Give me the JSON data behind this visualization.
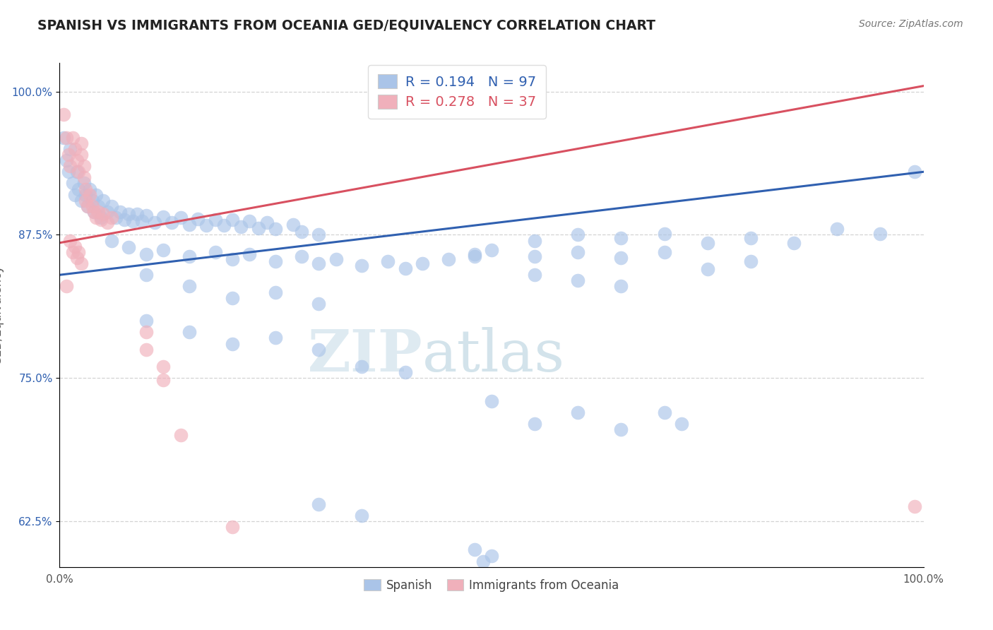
{
  "title": "SPANISH VS IMMIGRANTS FROM OCEANIA GED/EQUIVALENCY CORRELATION CHART",
  "source": "Source: ZipAtlas.com",
  "ylabel": "GED/Equivalency",
  "ytick_labels": [
    "62.5%",
    "75.0%",
    "87.5%",
    "100.0%"
  ],
  "ytick_values": [
    0.625,
    0.75,
    0.875,
    1.0
  ],
  "xlim": [
    0.0,
    1.0
  ],
  "ylim": [
    0.585,
    1.025
  ],
  "legend_bottom": [
    "Spanish",
    "Immigrants from Oceania"
  ],
  "blue_color": "#aac4e8",
  "pink_color": "#f0b0bb",
  "blue_line_color": "#3060b0",
  "pink_line_color": "#d85060",
  "watermark_zip": "ZIP",
  "watermark_atlas": "atlas",
  "background_color": "#ffffff",
  "grid_color": "#c8c8c8",
  "title_color": "#222222",
  "blue_line": {
    "x0": 0.0,
    "y0": 0.84,
    "x1": 1.0,
    "y1": 0.93
  },
  "pink_line": {
    "x0": 0.0,
    "y0": 0.868,
    "x1": 1.0,
    "y1": 1.005
  },
  "blue_scatter": [
    [
      0.005,
      0.96
    ],
    [
      0.008,
      0.94
    ],
    [
      0.01,
      0.93
    ],
    [
      0.012,
      0.95
    ],
    [
      0.015,
      0.92
    ],
    [
      0.018,
      0.91
    ],
    [
      0.02,
      0.93
    ],
    [
      0.022,
      0.915
    ],
    [
      0.025,
      0.905
    ],
    [
      0.028,
      0.92
    ],
    [
      0.03,
      0.91
    ],
    [
      0.032,
      0.9
    ],
    [
      0.035,
      0.915
    ],
    [
      0.038,
      0.905
    ],
    [
      0.04,
      0.895
    ],
    [
      0.042,
      0.91
    ],
    [
      0.045,
      0.9
    ],
    [
      0.048,
      0.89
    ],
    [
      0.05,
      0.905
    ],
    [
      0.055,
      0.895
    ],
    [
      0.06,
      0.9
    ],
    [
      0.065,
      0.89
    ],
    [
      0.07,
      0.895
    ],
    [
      0.075,
      0.888
    ],
    [
      0.08,
      0.893
    ],
    [
      0.085,
      0.887
    ],
    [
      0.09,
      0.893
    ],
    [
      0.095,
      0.887
    ],
    [
      0.1,
      0.892
    ],
    [
      0.11,
      0.886
    ],
    [
      0.12,
      0.891
    ],
    [
      0.13,
      0.886
    ],
    [
      0.14,
      0.89
    ],
    [
      0.15,
      0.884
    ],
    [
      0.16,
      0.889
    ],
    [
      0.17,
      0.883
    ],
    [
      0.18,
      0.888
    ],
    [
      0.19,
      0.883
    ],
    [
      0.2,
      0.888
    ],
    [
      0.21,
      0.882
    ],
    [
      0.22,
      0.887
    ],
    [
      0.23,
      0.881
    ],
    [
      0.24,
      0.886
    ],
    [
      0.25,
      0.88
    ],
    [
      0.27,
      0.884
    ],
    [
      0.28,
      0.878
    ],
    [
      0.3,
      0.875
    ],
    [
      0.06,
      0.87
    ],
    [
      0.08,
      0.864
    ],
    [
      0.1,
      0.858
    ],
    [
      0.12,
      0.862
    ],
    [
      0.15,
      0.856
    ],
    [
      0.18,
      0.86
    ],
    [
      0.2,
      0.854
    ],
    [
      0.22,
      0.858
    ],
    [
      0.25,
      0.852
    ],
    [
      0.28,
      0.856
    ],
    [
      0.3,
      0.85
    ],
    [
      0.32,
      0.854
    ],
    [
      0.35,
      0.848
    ],
    [
      0.38,
      0.852
    ],
    [
      0.4,
      0.846
    ],
    [
      0.42,
      0.85
    ],
    [
      0.45,
      0.854
    ],
    [
      0.48,
      0.858
    ],
    [
      0.5,
      0.862
    ],
    [
      0.48,
      0.856
    ],
    [
      0.1,
      0.84
    ],
    [
      0.15,
      0.83
    ],
    [
      0.2,
      0.82
    ],
    [
      0.25,
      0.825
    ],
    [
      0.3,
      0.815
    ],
    [
      0.1,
      0.8
    ],
    [
      0.15,
      0.79
    ],
    [
      0.2,
      0.78
    ],
    [
      0.25,
      0.785
    ],
    [
      0.3,
      0.775
    ],
    [
      0.55,
      0.87
    ],
    [
      0.6,
      0.875
    ],
    [
      0.65,
      0.872
    ],
    [
      0.7,
      0.876
    ],
    [
      0.75,
      0.868
    ],
    [
      0.8,
      0.872
    ],
    [
      0.85,
      0.868
    ],
    [
      0.9,
      0.88
    ],
    [
      0.95,
      0.876
    ],
    [
      0.55,
      0.856
    ],
    [
      0.6,
      0.86
    ],
    [
      0.65,
      0.855
    ],
    [
      0.7,
      0.86
    ],
    [
      0.75,
      0.845
    ],
    [
      0.8,
      0.852
    ],
    [
      0.55,
      0.84
    ],
    [
      0.6,
      0.835
    ],
    [
      0.65,
      0.83
    ],
    [
      0.35,
      0.76
    ],
    [
      0.4,
      0.755
    ],
    [
      0.5,
      0.73
    ],
    [
      0.55,
      0.71
    ],
    [
      0.6,
      0.72
    ],
    [
      0.65,
      0.705
    ],
    [
      0.7,
      0.72
    ],
    [
      0.72,
      0.71
    ],
    [
      0.3,
      0.64
    ],
    [
      0.35,
      0.63
    ],
    [
      0.48,
      0.6
    ],
    [
      0.49,
      0.59
    ],
    [
      0.5,
      0.595
    ],
    [
      0.99,
      0.93
    ]
  ],
  "pink_scatter": [
    [
      0.005,
      0.98
    ],
    [
      0.008,
      0.96
    ],
    [
      0.01,
      0.945
    ],
    [
      0.012,
      0.935
    ],
    [
      0.015,
      0.96
    ],
    [
      0.018,
      0.95
    ],
    [
      0.02,
      0.94
    ],
    [
      0.022,
      0.93
    ],
    [
      0.025,
      0.955
    ],
    [
      0.025,
      0.945
    ],
    [
      0.028,
      0.935
    ],
    [
      0.028,
      0.925
    ],
    [
      0.03,
      0.915
    ],
    [
      0.03,
      0.905
    ],
    [
      0.032,
      0.9
    ],
    [
      0.035,
      0.91
    ],
    [
      0.038,
      0.9
    ],
    [
      0.04,
      0.895
    ],
    [
      0.042,
      0.89
    ],
    [
      0.045,
      0.895
    ],
    [
      0.048,
      0.888
    ],
    [
      0.05,
      0.893
    ],
    [
      0.055,
      0.886
    ],
    [
      0.06,
      0.89
    ],
    [
      0.012,
      0.87
    ],
    [
      0.015,
      0.86
    ],
    [
      0.018,
      0.865
    ],
    [
      0.02,
      0.855
    ],
    [
      0.022,
      0.86
    ],
    [
      0.025,
      0.85
    ],
    [
      0.008,
      0.83
    ],
    [
      0.1,
      0.79
    ],
    [
      0.1,
      0.775
    ],
    [
      0.12,
      0.76
    ],
    [
      0.12,
      0.748
    ],
    [
      0.14,
      0.7
    ],
    [
      0.2,
      0.62
    ],
    [
      0.99,
      0.638
    ]
  ]
}
